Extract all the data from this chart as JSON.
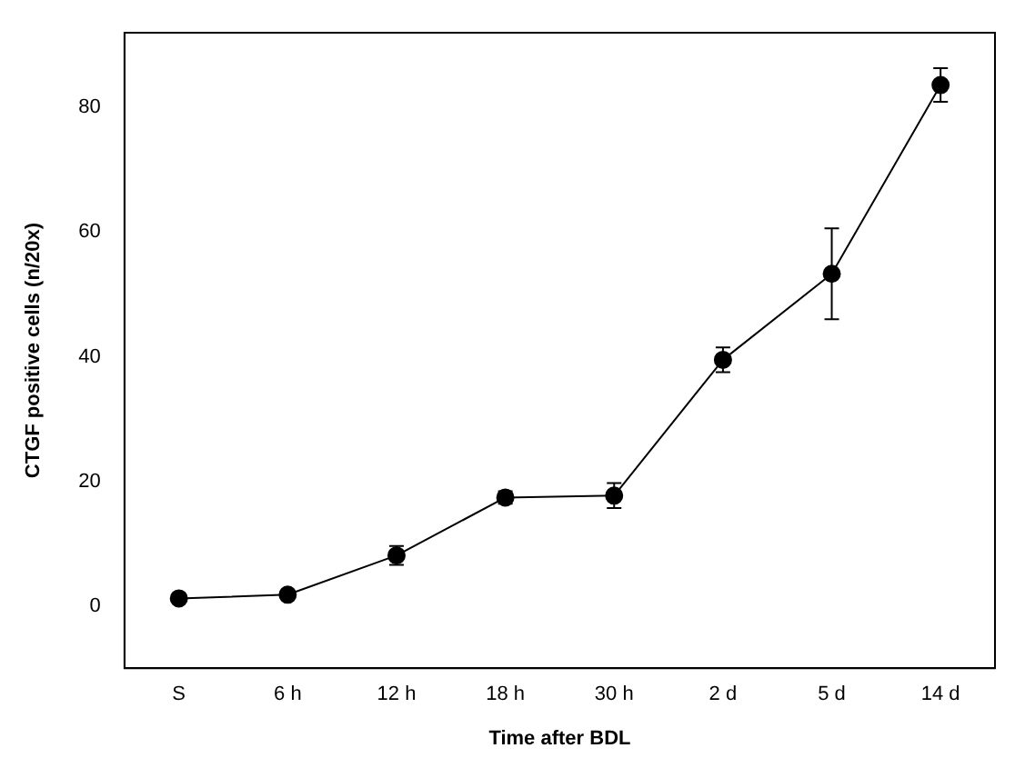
{
  "chart_data": {
    "type": "line",
    "xlabel": "Time after BDL",
    "ylabel": "CTGF positive cells (n/20x)",
    "categories": [
      "S",
      "6 h",
      "12 h",
      "18 h",
      "30 h",
      "2 d",
      "5 d",
      "14 d"
    ],
    "series": [
      {
        "color": "#000000",
        "values": [
          1.2,
          1.8,
          8.1,
          17.4,
          17.7,
          39.5,
          53.3,
          83.6
        ],
        "errors": [
          0.5,
          0.5,
          1.5,
          1,
          2,
          2,
          7.3,
          2.7
        ]
      }
    ],
    "ylim": [
      -10,
      92
    ],
    "yticks": [
      0,
      20,
      40,
      60,
      80
    ],
    "grid": false,
    "legend": false,
    "marker": "circle",
    "line_style": "solid"
  }
}
